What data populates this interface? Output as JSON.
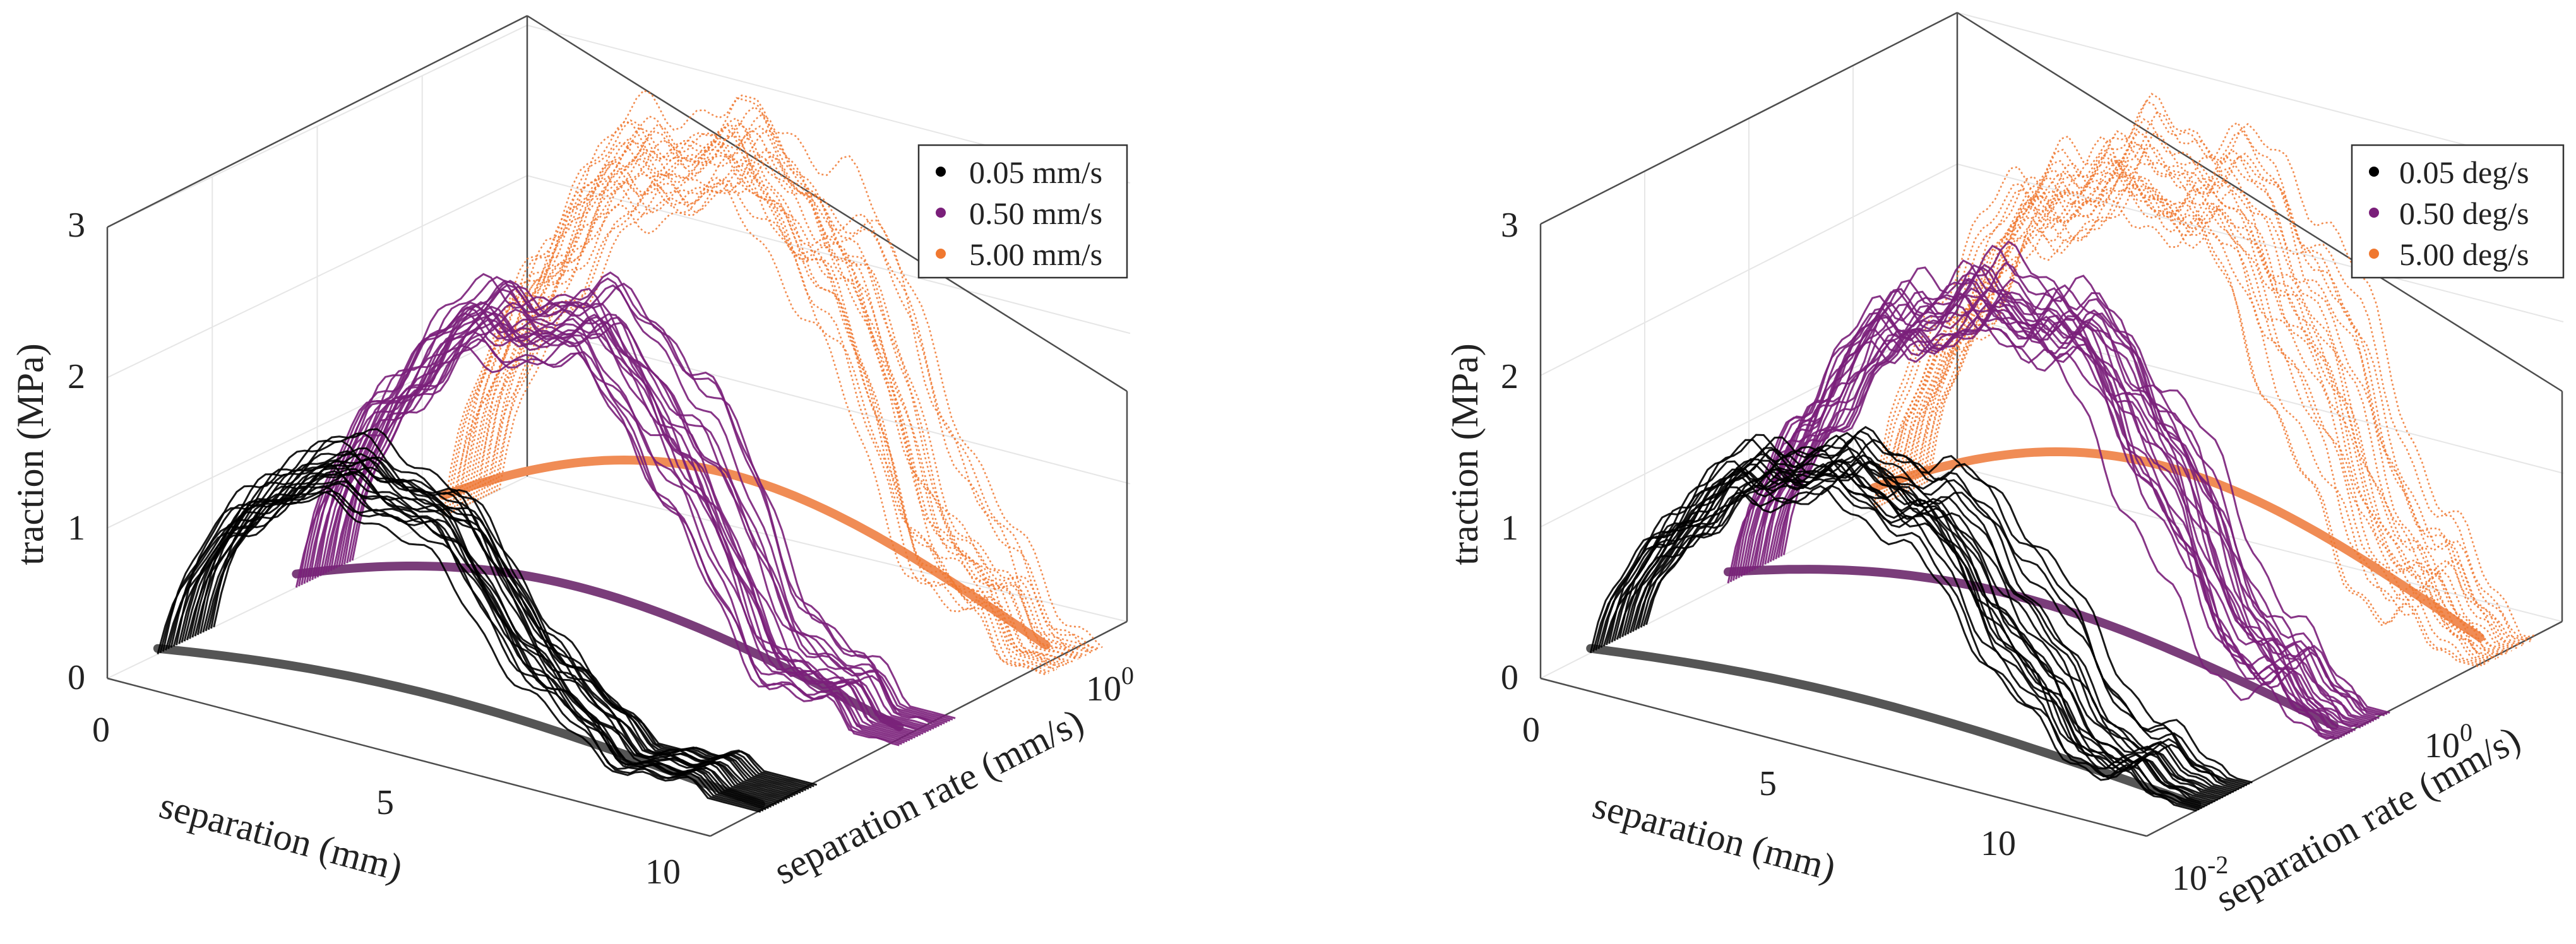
{
  "chart_data": [
    {
      "type": "line",
      "subtype": "3d-line-families",
      "title": "",
      "xlabel": "separation (mm)",
      "ylabel": "separation rate (mm/s)",
      "zlabel": "traction (MPa)",
      "x_ticks": [
        "0",
        "5",
        "10"
      ],
      "y_ticks": [
        {
          "base": "10",
          "exp": "0"
        }
      ],
      "z_ticks": [
        "0",
        "1",
        "2",
        "3"
      ],
      "xlim": [
        0,
        10
      ],
      "zlim": [
        0,
        3
      ],
      "legend": {
        "position": "top-right",
        "entries": [
          "0.05 mm/s",
          "0.50 mm/s",
          "5.00 mm/s"
        ]
      },
      "series": [
        {
          "name": "0.05 mm/s",
          "color": "#000000",
          "experimental_peak_traction": 1.65,
          "model_peak_traction": 0.25,
          "separation_at_peak": 3.0,
          "max_separation": 10
        },
        {
          "name": "0.50 mm/s",
          "color": "#7a1f7a",
          "experimental_peak_traction": 2.4,
          "model_peak_traction": 0.6,
          "separation_at_peak": 4.0,
          "max_separation": 10
        },
        {
          "name": "5.00 mm/s",
          "color": "#f07830",
          "experimental_peak_traction": 3.2,
          "model_peak_traction": 0.95,
          "separation_at_peak": 4.5,
          "max_separation": 10
        }
      ],
      "model_surface_color": "#555555"
    },
    {
      "type": "line",
      "subtype": "3d-line-families",
      "title": "",
      "xlabel": "separation (mm)",
      "ylabel": "separation rate (mm/s)",
      "zlabel": "traction (MPa)",
      "x_ticks": [
        "0",
        "5",
        "10"
      ],
      "y_ticks": [
        {
          "base": "10",
          "exp": "-2"
        },
        {
          "base": "10",
          "exp": "0"
        }
      ],
      "z_ticks": [
        "0",
        "1",
        "2",
        "3"
      ],
      "xlim": [
        0,
        12
      ],
      "zlim": [
        0,
        3
      ],
      "legend": {
        "position": "top-right",
        "entries": [
          "0.05 deg/s",
          "0.50 deg/s",
          "5.00 deg/s"
        ]
      },
      "series": [
        {
          "name": "0.05 deg/s",
          "color": "#000000",
          "experimental_peak_traction": 1.75,
          "model_peak_traction": 0.2,
          "separation_at_peak": 5.0,
          "max_separation": 12
        },
        {
          "name": "0.50 deg/s",
          "color": "#7a1f7a",
          "experimental_peak_traction": 2.5,
          "model_peak_traction": 0.5,
          "separation_at_peak": 5.5,
          "max_separation": 12
        },
        {
          "name": "5.00 deg/s",
          "color": "#f07830",
          "experimental_peak_traction": 3.0,
          "model_peak_traction": 0.95,
          "separation_at_peak": 5.5,
          "max_separation": 12
        }
      ],
      "model_surface_color": "#555555"
    }
  ]
}
